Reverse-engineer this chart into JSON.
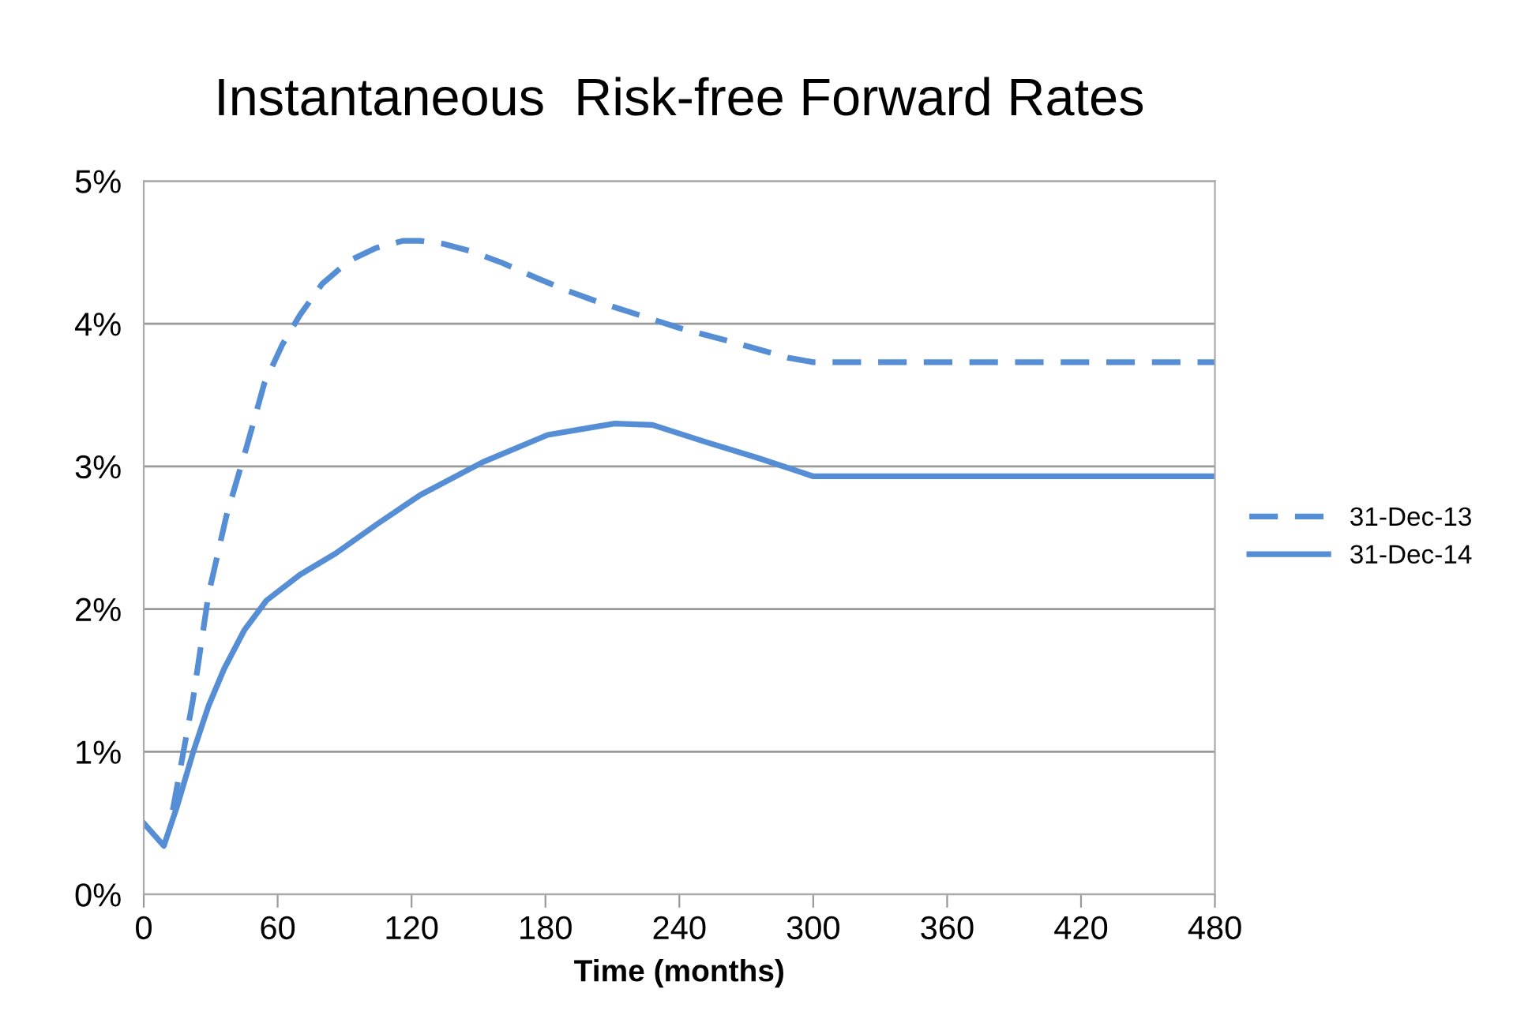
{
  "chart_data": {
    "type": "line",
    "title": "Instantaneous  Risk-free Forward Rates",
    "xlabel": "Time (months)",
    "xlim": [
      0,
      480
    ],
    "xticks": [
      0,
      60,
      120,
      180,
      240,
      300,
      360,
      420,
      480
    ],
    "ylim": [
      0,
      5
    ],
    "yticks": [
      {
        "value": 0,
        "label": "0%"
      },
      {
        "value": 1,
        "label": "1%"
      },
      {
        "value": 2,
        "label": "2%"
      },
      {
        "value": 3,
        "label": "3%"
      },
      {
        "value": 4,
        "label": "4%"
      },
      {
        "value": 5,
        "label": "5%"
      }
    ],
    "grid": "y",
    "legend": "right",
    "marker": "none",
    "series": [
      {
        "name": "31-Dec-13",
        "color": "#558ed5",
        "line_style": "dashed",
        "x": [
          13,
          22,
          29,
          37,
          46,
          54,
          62,
          70,
          80,
          92,
          104,
          116,
          124,
          134,
          146,
          160,
          176,
          190,
          204,
          222,
          240,
          264,
          289,
          300,
          480
        ],
        "values": [
          0.59,
          1.36,
          2.1,
          2.65,
          3.13,
          3.58,
          3.85,
          4.06,
          4.28,
          4.44,
          4.53,
          4.58,
          4.58,
          4.56,
          4.51,
          4.43,
          4.32,
          4.23,
          4.15,
          4.06,
          3.97,
          3.87,
          3.76,
          3.73,
          3.73
        ]
      },
      {
        "name": "31-Dec-14",
        "color": "#558ed5",
        "line_style": "solid",
        "x": [
          0,
          9,
          15,
          22,
          29,
          36,
          45,
          55,
          70,
          86,
          105,
          124,
          152,
          181,
          211,
          228,
          252,
          275,
          300,
          480
        ],
        "values": [
          0.5,
          0.34,
          0.62,
          0.99,
          1.32,
          1.58,
          1.85,
          2.06,
          2.24,
          2.39,
          2.6,
          2.8,
          3.03,
          3.22,
          3.3,
          3.29,
          3.17,
          3.06,
          2.93,
          2.93
        ]
      }
    ]
  }
}
